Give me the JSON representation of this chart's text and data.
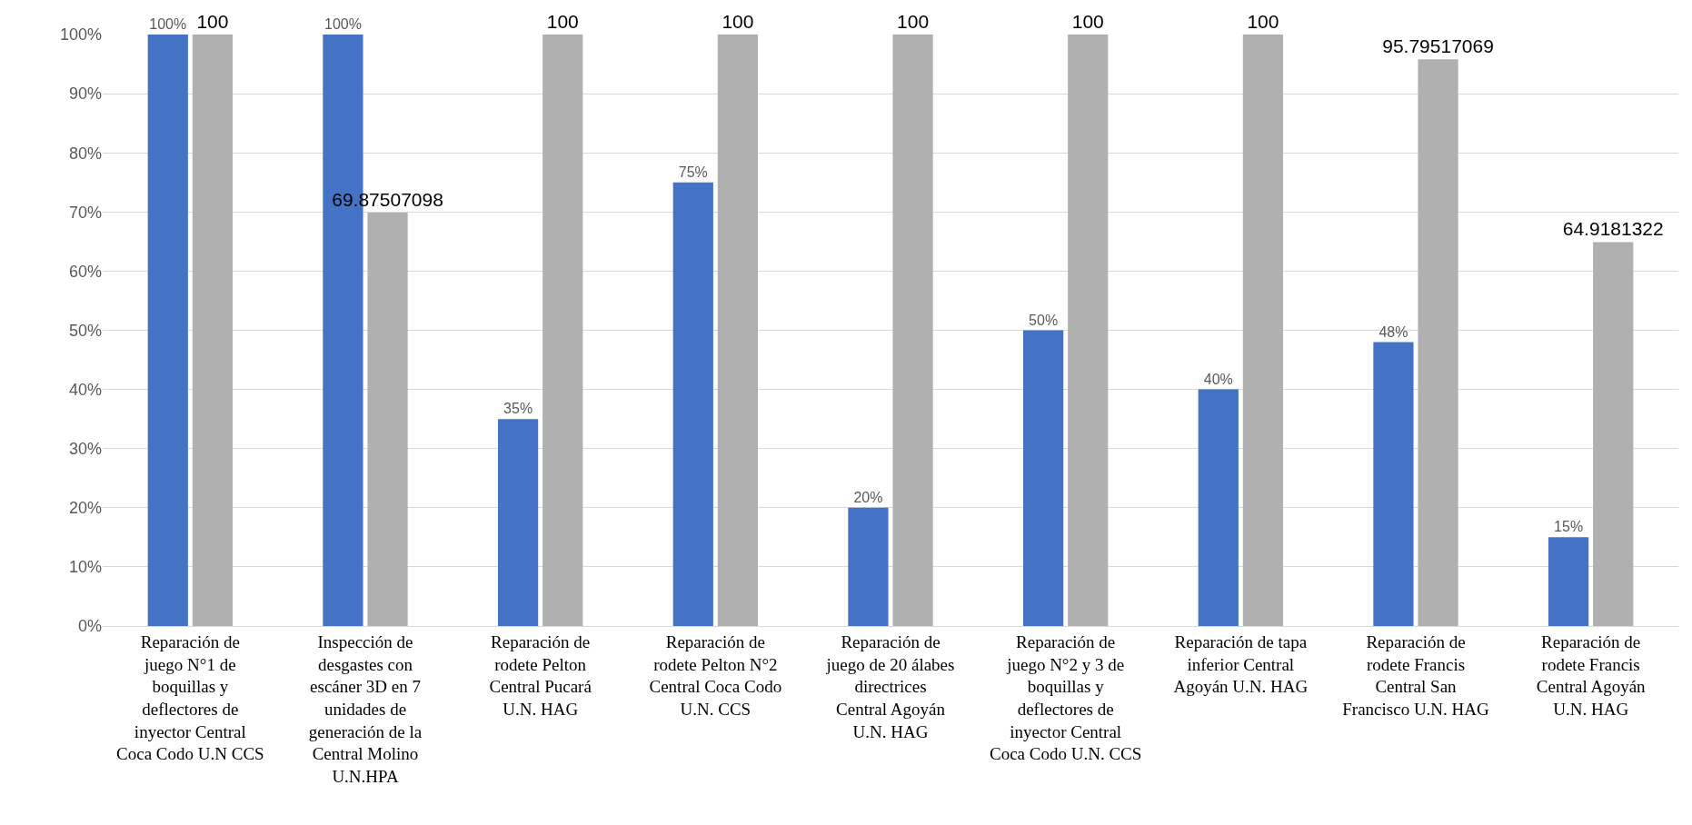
{
  "chart_data": {
    "type": "bar",
    "categories": [
      "Reparación de juego N°1 de boquillas y deflectores de inyector Central Coca Codo U.N CCS",
      "Inspección de desgastes con escáner 3D en 7 unidades de generación de la Central Molino U.N.HPA",
      "Reparación de rodete Pelton Central Pucará U.N. HAG",
      "Reparación de rodete Pelton N°2 Central Coca Codo U.N. CCS",
      "Reparación de juego de 20 álabes directrices Central Agoyán U.N. HAG",
      "Reparación de juego N°2 y 3 de boquillas y deflectores de inyector Central Coca Codo U.N. CCS",
      "Reparación de tapa inferior Central Agoyán U.N. HAG",
      "Reparación de rodete Francis Central San Francisco U.N. HAG",
      "Reparación de rodete Francis Central Agoyán U.N. HAG"
    ],
    "series": [
      {
        "color": "#4472c4",
        "values": [
          100,
          100,
          35,
          75,
          20,
          50,
          40,
          48,
          15
        ],
        "value_labels": [
          "100%",
          "100%",
          "35%",
          "75%",
          "20%",
          "50%",
          "40%",
          "48%",
          "15%"
        ]
      },
      {
        "color": "#b0b0b0",
        "values": [
          100,
          69.87507098,
          100,
          100,
          100,
          100,
          100,
          95.79517069,
          64.9181322
        ],
        "value_labels": [
          "100",
          "69.87507098",
          "100",
          "100",
          "100",
          "100",
          "100",
          "95.79517069",
          "64.9181322"
        ]
      }
    ],
    "ylim": [
      0,
      100
    ],
    "yticks": [
      {
        "value": 0,
        "label": "0%"
      },
      {
        "value": 10,
        "label": "10%"
      },
      {
        "value": 20,
        "label": "20%"
      },
      {
        "value": 30,
        "label": "30%"
      },
      {
        "value": 40,
        "label": "40%"
      },
      {
        "value": 50,
        "label": "50%"
      },
      {
        "value": 60,
        "label": "60%"
      },
      {
        "value": 70,
        "label": "70%"
      },
      {
        "value": 80,
        "label": "80%"
      },
      {
        "value": 90,
        "label": "90%"
      },
      {
        "value": 100,
        "label": "100%"
      }
    ],
    "grid": "y"
  }
}
